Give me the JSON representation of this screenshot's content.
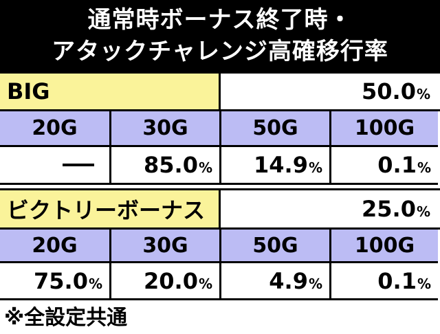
{
  "title": {
    "line1": "通常時ボーナス終了時・",
    "line2": "アタックチャレンジ高確移行率"
  },
  "big": {
    "name": "BIG",
    "rate": "50.0",
    "rate_unit": "%",
    "columns": [
      "20G",
      "30G",
      "50G",
      "100G"
    ],
    "values": [
      {
        "value": "",
        "unit": ""
      },
      {
        "value": "85.0",
        "unit": "%"
      },
      {
        "value": "14.9",
        "unit": "%"
      },
      {
        "value": "0.1",
        "unit": "%"
      }
    ]
  },
  "victory": {
    "name": "ビクトリーボーナス",
    "rate": "25.0",
    "rate_unit": "%",
    "columns": [
      "20G",
      "30G",
      "50G",
      "100G"
    ],
    "values": [
      {
        "value": "75.0",
        "unit": "%"
      },
      {
        "value": "20.0",
        "unit": "%"
      },
      {
        "value": "4.9",
        "unit": "%"
      },
      {
        "value": "0.1",
        "unit": "%"
      }
    ]
  },
  "footnote": "※全設定共通"
}
